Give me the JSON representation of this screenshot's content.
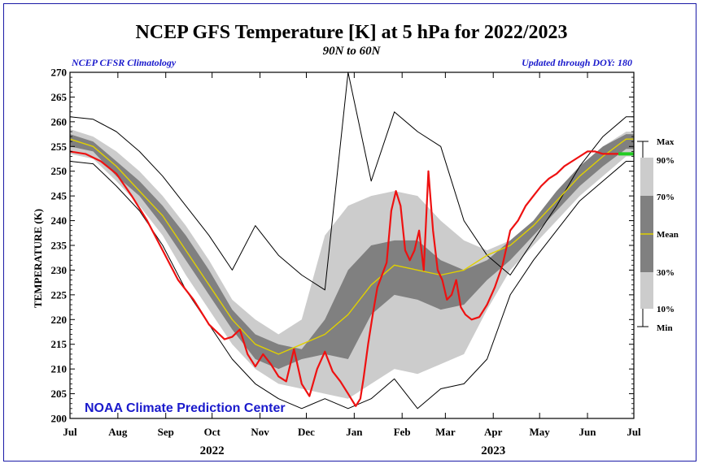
{
  "chart_data": {
    "type": "area",
    "title": "NCEP GFS Temperature [K] at 5 hPa for 2022/2023",
    "subtitle": "90N to 60N",
    "note_left": "NCEP CFSR Climatology",
    "note_right": "Updated through DOY: 180",
    "credit": "NOAA Climate Prediction Center",
    "ylabel": "TEMPERATURE (K)",
    "ylim": [
      200,
      270
    ],
    "yticks": [
      "200",
      "205",
      "210",
      "215",
      "220",
      "225",
      "230",
      "235",
      "240",
      "245",
      "250",
      "255",
      "260",
      "265",
      "270"
    ],
    "xlim": [
      0,
      365
    ],
    "months": [
      {
        "label": "Jul",
        "x": 0
      },
      {
        "label": "Aug",
        "x": 31
      },
      {
        "label": "Sep",
        "x": 62
      },
      {
        "label": "Oct",
        "x": 92
      },
      {
        "label": "Nov",
        "x": 123
      },
      {
        "label": "Dec",
        "x": 153
      },
      {
        "label": "Jan",
        "x": 184
      },
      {
        "label": "Feb",
        "x": 215
      },
      {
        "label": "Mar",
        "x": 243
      },
      {
        "label": "Apr",
        "x": 274
      },
      {
        "label": "May",
        "x": 304
      },
      {
        "label": "Jun",
        "x": 335
      },
      {
        "label": "Jul",
        "x": 365
      }
    ],
    "years": [
      {
        "label": "2022",
        "x": 92
      },
      {
        "label": "2023",
        "x": 274
      }
    ],
    "legend": {
      "max": "Max",
      "p90": "90%",
      "p70": "70%",
      "mean": "Mean",
      "p30": "30%",
      "p10": "10%",
      "min": "Min"
    },
    "colors": {
      "light": "#cccccc",
      "dark": "#808080",
      "mean": "#e0d000",
      "current": "#ee1111",
      "latest": "#22cc22",
      "frame": "#1a1aa6"
    },
    "days": [
      0,
      15,
      30,
      45,
      60,
      75,
      90,
      105,
      120,
      135,
      150,
      165,
      180,
      195,
      210,
      225,
      240,
      255,
      270,
      285,
      300,
      315,
      330,
      345,
      360,
      365
    ],
    "max": [
      261,
      260.5,
      258,
      254,
      249,
      243,
      237,
      230,
      239,
      233,
      229,
      226,
      270,
      248,
      262,
      258,
      255,
      240,
      233,
      229,
      236,
      243,
      251,
      257,
      261,
      261
    ],
    "p90": [
      258.5,
      257,
      254,
      250,
      245,
      239,
      232,
      224,
      220,
      217,
      220,
      237,
      243,
      245,
      246,
      245,
      240,
      236,
      234,
      236,
      240,
      246,
      251,
      255,
      258,
      258
    ],
    "p70": [
      257.5,
      256,
      252,
      248,
      243,
      237,
      230,
      222,
      217,
      215,
      214,
      220,
      230,
      235,
      236,
      236,
      232,
      230,
      232,
      236,
      240,
      246,
      251,
      255,
      257.5,
      257.5
    ],
    "mean": [
      256.5,
      255,
      251,
      246,
      241,
      234,
      227,
      220,
      215,
      213,
      215,
      217,
      221,
      227,
      231,
      230,
      229,
      230,
      233,
      235,
      239,
      244,
      249,
      253,
      256.5,
      256.5
    ],
    "p30": [
      255,
      254,
      249,
      245,
      239,
      232,
      225,
      218,
      212,
      210,
      212,
      213,
      212,
      221,
      225,
      224,
      222,
      223,
      228,
      232,
      237,
      242,
      247,
      251,
      254.5,
      254.5
    ],
    "p10": [
      253.5,
      252.5,
      248,
      243,
      237,
      229,
      222,
      215,
      210,
      207,
      206,
      205,
      204,
      207,
      210,
      209,
      211,
      213,
      222,
      230,
      235,
      240,
      245,
      249,
      253,
      253
    ],
    "min": [
      252,
      251.5,
      247,
      242,
      235,
      226,
      219,
      212,
      207,
      204,
      202,
      204,
      202,
      204,
      208,
      202,
      206,
      207,
      212,
      225,
      232,
      238,
      244,
      248,
      252,
      252
    ],
    "current_days": [
      0,
      10,
      20,
      30,
      40,
      50,
      60,
      70,
      80,
      90,
      100,
      105,
      110,
      115,
      120,
      125,
      130,
      135,
      140,
      145,
      150,
      155,
      160,
      165,
      170,
      175,
      180,
      183,
      185,
      188,
      190,
      193,
      196,
      199,
      202,
      205,
      208,
      211,
      214,
      217,
      220,
      223,
      226,
      229,
      232,
      235,
      238,
      241,
      244,
      247,
      250,
      253,
      256,
      260,
      265,
      270,
      275,
      280,
      285,
      290,
      295,
      300,
      305,
      310,
      315,
      320,
      325,
      330,
      335,
      340,
      345,
      350,
      355,
      360
    ],
    "current_temp": [
      254,
      253.5,
      252,
      249.5,
      245,
      240,
      234,
      228,
      224,
      219,
      216,
      216.5,
      218,
      213,
      210.5,
      213,
      211,
      208.5,
      207.5,
      214,
      207,
      204.5,
      210,
      213.5,
      209.5,
      207.5,
      205,
      203.5,
      202.5,
      204,
      208,
      215,
      221,
      226.5,
      229,
      231.5,
      242,
      246,
      243,
      234,
      232,
      234,
      238,
      230,
      250,
      238,
      230,
      228,
      224,
      225,
      228,
      222.5,
      221,
      220,
      220.5,
      223,
      226.5,
      231,
      238,
      240,
      243,
      245,
      247,
      248.5,
      249.5,
      251,
      252,
      253,
      254,
      254,
      253.5,
      253.5,
      253.5,
      253.5
    ]
  }
}
